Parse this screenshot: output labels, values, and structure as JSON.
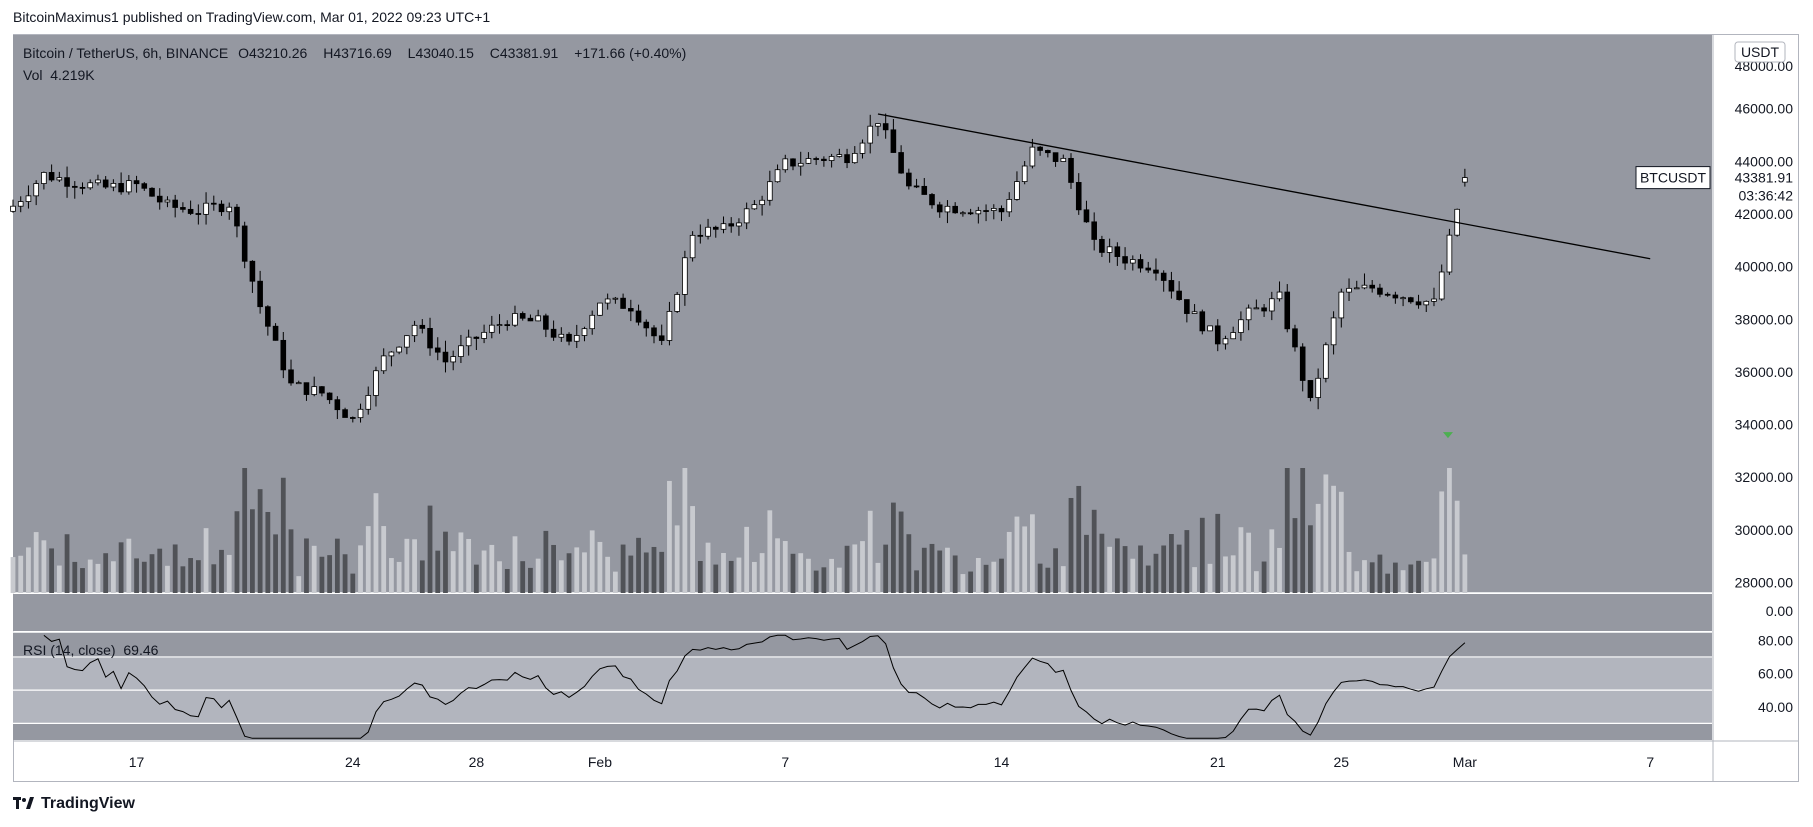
{
  "header": {
    "text": "BitcoinMaximus1 published on TradingView.com, Mar 01, 2022 09:23 UTC+1"
  },
  "legend": {
    "symbol": "Bitcoin / TetherUS, 6h, BINANCE",
    "open_label": "O",
    "open": "43210.26",
    "high_label": "H",
    "high": "43716.69",
    "low_label": "L",
    "low": "43040.15",
    "close_label": "C",
    "close": "43381.91",
    "change": "+171.66 (+0.40%)",
    "volume_label": "Vol",
    "volume": "4.219K"
  },
  "rsi_legend": {
    "label": "RSI (14, close)",
    "value": "69.46"
  },
  "price_axis": {
    "currency": "USDT",
    "ticks": [
      "48000.00",
      "46000.00",
      "44000.00",
      "42000.00",
      "40000.00",
      "38000.00",
      "36000.00",
      "34000.00",
      "32000.00",
      "30000.00",
      "28000.00",
      "0.00"
    ],
    "symbol_tag": "BTCUSDT",
    "last_price": "43381.91",
    "countdown": "03:36:42"
  },
  "rsi_axis": {
    "ticks": [
      "80.00",
      "60.00",
      "40.00"
    ]
  },
  "time_axis": {
    "ticks": [
      "17",
      "24",
      "28",
      "Feb",
      "7",
      "14",
      "21",
      "25",
      "Mar",
      "7"
    ]
  },
  "colors": {
    "background": "#9598a1",
    "rsi_band": "#b2b5be",
    "bull": "#ffffff",
    "bear": "#000000",
    "vol_bull": "#c8cacf",
    "vol_bear": "#505257",
    "marker": "#4caf50"
  },
  "footer": {
    "brand": "TradingView",
    "logo_icon": "tradingview-logo-icon"
  },
  "chart_data": {
    "type": "candlestick",
    "title": "Bitcoin / TetherUS, 6h, BINANCE",
    "x_range": [
      "2022-01-13",
      "2022-03-09"
    ],
    "y_range": [
      27600,
      48800
    ],
    "rsi_range": [
      20,
      85
    ],
    "grid": false,
    "legend_position": "top-left",
    "anchors": [
      {
        "d": "2022-01-13",
        "c": 42300
      },
      {
        "d": "2022-01-14",
        "c": 43500
      },
      {
        "d": "2022-01-15",
        "c": 43200
      },
      {
        "d": "2022-01-16",
        "c": 43000
      },
      {
        "d": "2022-01-17",
        "c": 43100
      },
      {
        "d": "2022-01-18",
        "c": 42300
      },
      {
        "d": "2022-01-19",
        "c": 42100
      },
      {
        "d": "2022-01-20",
        "c": 42400
      },
      {
        "d": "2022-01-21",
        "c": 38500
      },
      {
        "d": "2022-01-22",
        "c": 35500
      },
      {
        "d": "2022-01-23",
        "c": 35200
      },
      {
        "d": "2022-01-24",
        "c": 34200
      },
      {
        "d": "2022-01-25",
        "c": 36500
      },
      {
        "d": "2022-01-26",
        "c": 37800
      },
      {
        "d": "2022-01-27",
        "c": 36400
      },
      {
        "d": "2022-01-28",
        "c": 37300
      },
      {
        "d": "2022-01-29",
        "c": 38000
      },
      {
        "d": "2022-01-30",
        "c": 37900
      },
      {
        "d": "2022-01-31",
        "c": 37000
      },
      {
        "d": "2022-02-01",
        "c": 38700
      },
      {
        "d": "2022-02-02",
        "c": 38500
      },
      {
        "d": "2022-02-03",
        "c": 37000
      },
      {
        "d": "2022-02-04",
        "c": 41300
      },
      {
        "d": "2022-02-05",
        "c": 41400
      },
      {
        "d": "2022-02-06",
        "c": 42300
      },
      {
        "d": "2022-02-07",
        "c": 43900
      },
      {
        "d": "2022-02-08",
        "c": 44100
      },
      {
        "d": "2022-02-09",
        "c": 44200
      },
      {
        "d": "2022-02-10",
        "c": 45600
      },
      {
        "d": "2022-02-11",
        "c": 43000
      },
      {
        "d": "2022-02-12",
        "c": 42300
      },
      {
        "d": "2022-02-13",
        "c": 42200
      },
      {
        "d": "2022-02-14",
        "c": 42100
      },
      {
        "d": "2022-02-15",
        "c": 44400
      },
      {
        "d": "2022-02-16",
        "c": 44000
      },
      {
        "d": "2022-02-17",
        "c": 40800
      },
      {
        "d": "2022-02-18",
        "c": 40300
      },
      {
        "d": "2022-02-19",
        "c": 40000
      },
      {
        "d": "2022-02-20",
        "c": 38400
      },
      {
        "d": "2022-02-21",
        "c": 37200
      },
      {
        "d": "2022-02-22",
        "c": 38200
      },
      {
        "d": "2022-02-23",
        "c": 38800
      },
      {
        "d": "2022-02-24",
        "c": 34800
      },
      {
        "d": "2022-02-25",
        "c": 39000
      },
      {
        "d": "2022-02-26",
        "c": 39200
      },
      {
        "d": "2022-02-27",
        "c": 38900
      },
      {
        "d": "2022-02-28",
        "c": 38600
      },
      {
        "d": "2022-03-01",
        "c": 43381
      }
    ],
    "trendline": {
      "from": {
        "d": "2022-02-10",
        "p": 45800
      },
      "to": {
        "d": "2022-03-07",
        "p": 40300
      }
    },
    "marker": {
      "d": "2022-02-28",
      "p": 33600
    },
    "rsi_levels": [
      70,
      50,
      30
    ]
  }
}
